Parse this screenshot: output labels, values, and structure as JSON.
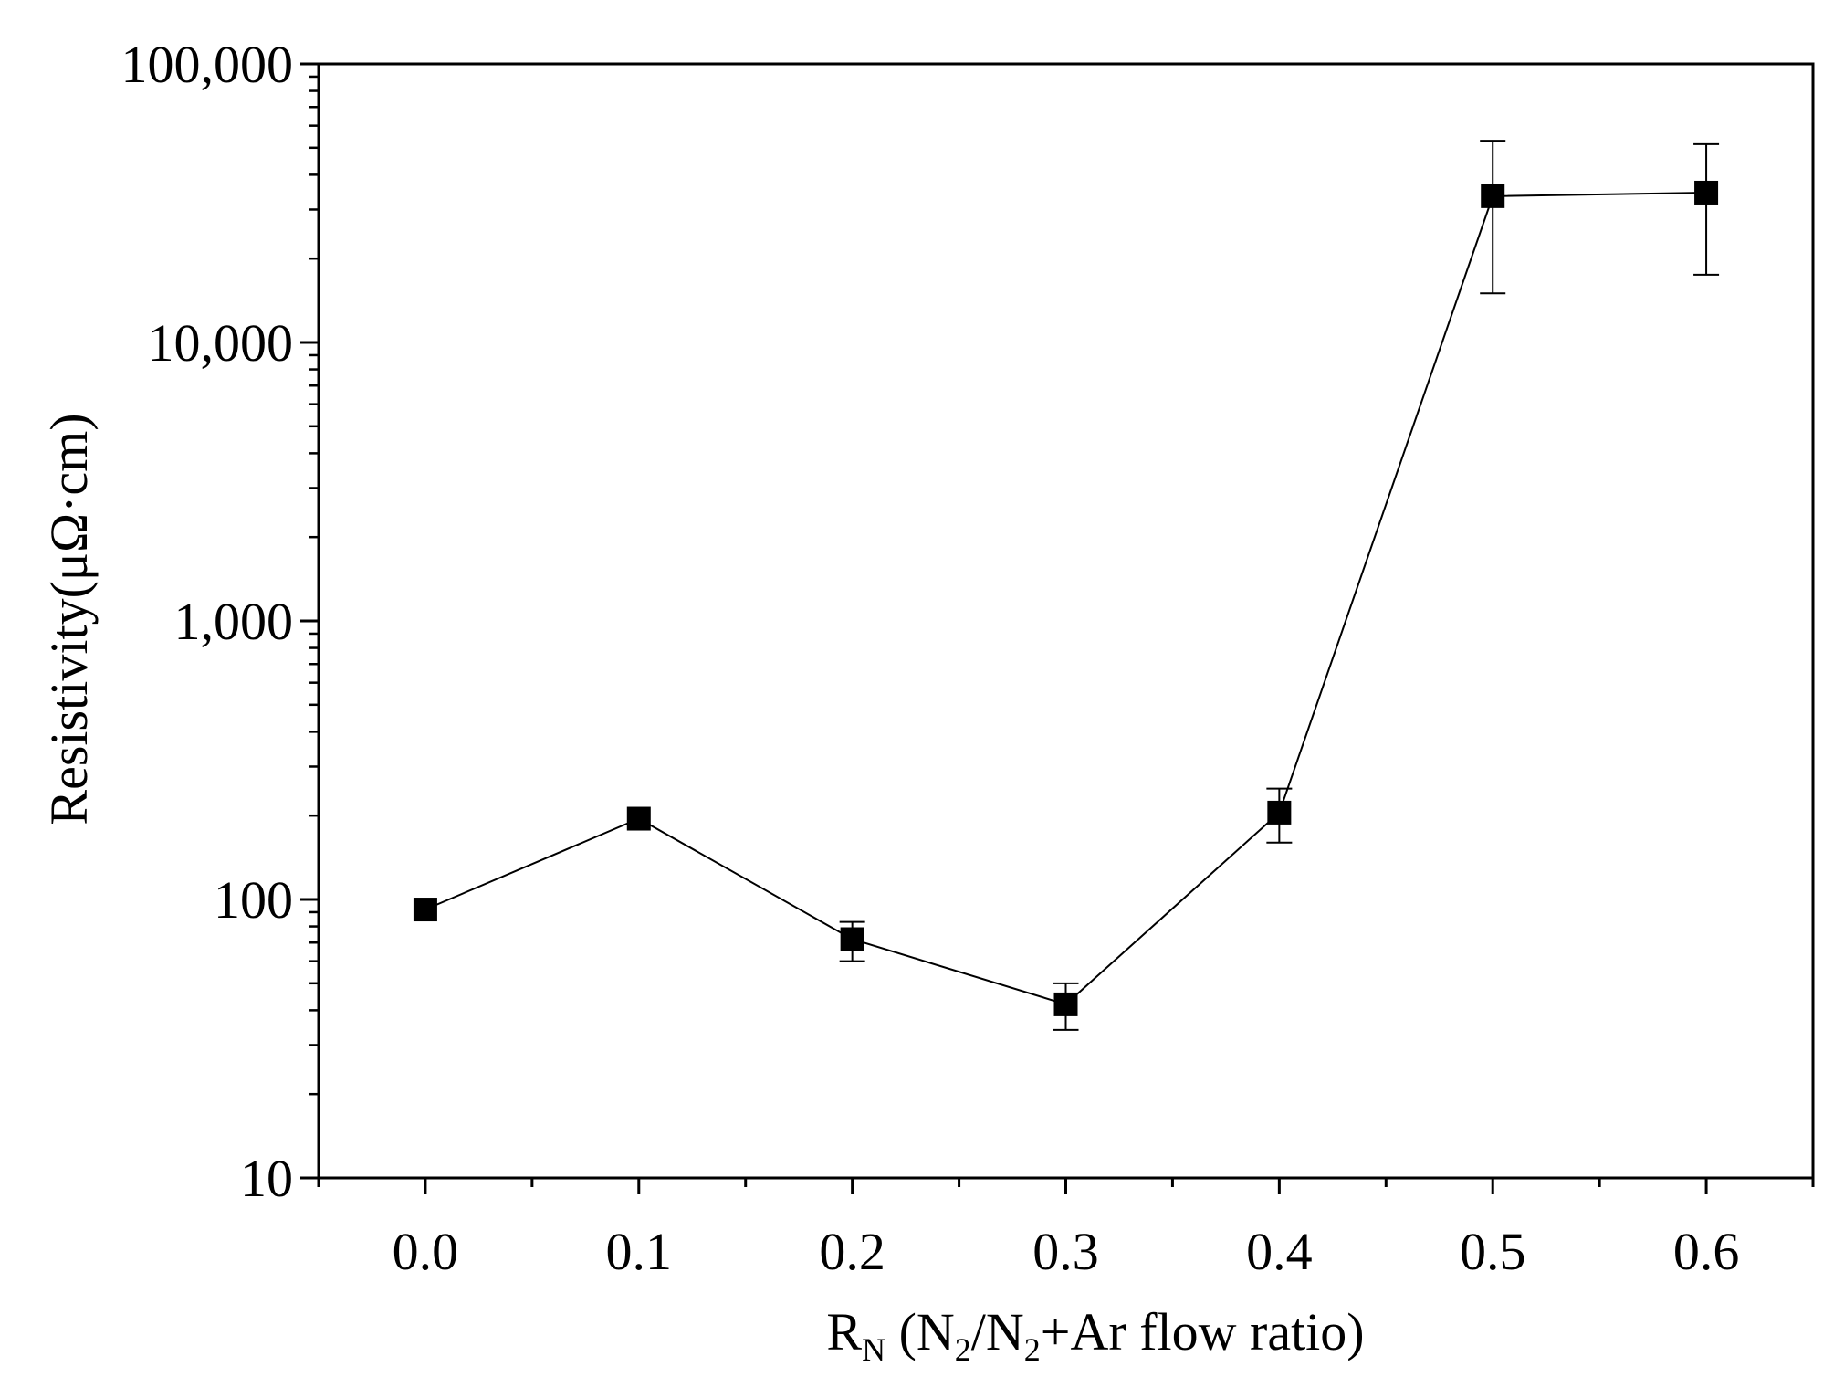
{
  "chart_data": {
    "type": "scatter",
    "mode": "line+markers",
    "title": "",
    "xlabel": {
      "main": "R",
      "main_sub": "N",
      "paren_1": " (N",
      "paren_1_sub": "2",
      "paren_2": "/N",
      "paren_2_sub": "2",
      "paren_3": "+Ar flow ratio)"
    },
    "ylabel": "Resistivity(μΩ·cm)",
    "xlim": [
      -0.05,
      0.65
    ],
    "ylim": [
      10,
      100000
    ],
    "yscale": "log",
    "x_ticks": [
      "0.0",
      "0.1",
      "0.2",
      "0.3",
      "0.4",
      "0.5",
      "0.6"
    ],
    "x_tick_values": [
      0.0,
      0.1,
      0.2,
      0.3,
      0.4,
      0.5,
      0.6
    ],
    "y_ticks": [
      "10",
      "100",
      "1,000",
      "10,000",
      "100,000"
    ],
    "y_tick_values": [
      10,
      100,
      1000,
      10000,
      100000
    ],
    "grid": false,
    "legend": "none",
    "series": [
      {
        "x": [
          0.0,
          0.1,
          0.2,
          0.3,
          0.4,
          0.5,
          0.6
        ],
        "y": [
          92,
          195,
          72,
          42,
          205,
          33500,
          34500
        ],
        "err_low": [
          92,
          195,
          60,
          34,
          160,
          15000,
          17500
        ],
        "err_high": [
          92,
          195,
          83,
          50,
          250,
          53000,
          51500
        ],
        "color": "#000000",
        "marker": "square"
      }
    ]
  }
}
